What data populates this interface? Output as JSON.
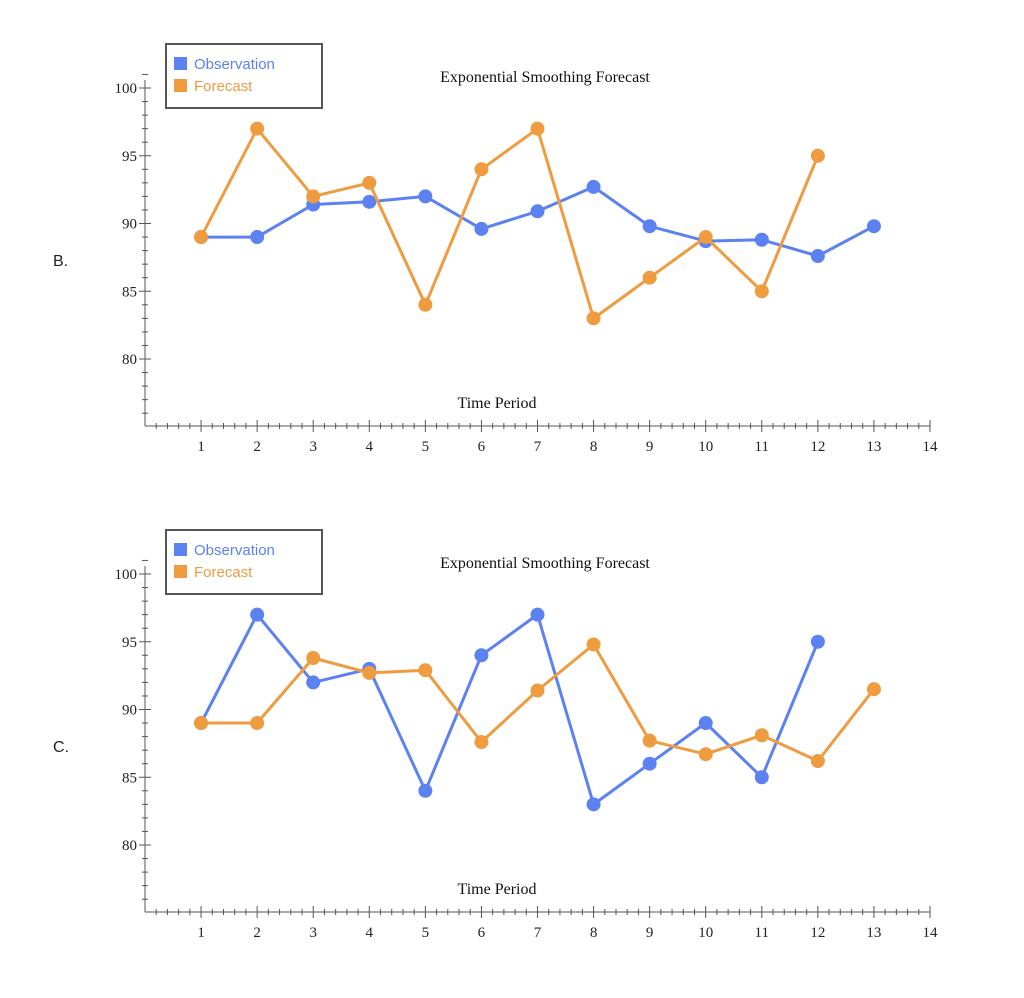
{
  "options": [
    {
      "label": "B."
    },
    {
      "label": "C."
    }
  ],
  "chart_data": [
    {
      "type": "line",
      "title": "Exponential Smoothing Forecast",
      "xlabel": "Time Period",
      "ylabel": "",
      "xlim": [
        0,
        14
      ],
      "ylim": [
        75,
        100
      ],
      "x_ticks": [
        1,
        2,
        3,
        4,
        5,
        6,
        7,
        8,
        9,
        10,
        11,
        12,
        13,
        14
      ],
      "y_ticks": [
        80,
        85,
        90,
        95,
        100
      ],
      "legend_position": "top-left",
      "grid": false,
      "series": [
        {
          "name": "Observation",
          "color": "#5b82f0",
          "x": [
            1,
            2,
            3,
            4,
            5,
            6,
            7,
            8,
            9,
            10,
            11,
            12,
            13
          ],
          "y": [
            89,
            89,
            91.4,
            91.6,
            92,
            89.6,
            90.9,
            92.7,
            89.8,
            88.7,
            88.8,
            87.6,
            89.8
          ]
        },
        {
          "name": "Forecast",
          "color": "#ef9b3f",
          "x": [
            1,
            2,
            3,
            4,
            5,
            6,
            7,
            8,
            9,
            10,
            11,
            12
          ],
          "y": [
            89,
            97,
            92,
            93,
            84,
            94,
            97,
            83,
            86,
            89,
            85,
            95
          ]
        }
      ]
    },
    {
      "type": "line",
      "title": "Exponential Smoothing Forecast",
      "xlabel": "Time Period",
      "ylabel": "",
      "xlim": [
        0,
        14
      ],
      "ylim": [
        75,
        100
      ],
      "x_ticks": [
        1,
        2,
        3,
        4,
        5,
        6,
        7,
        8,
        9,
        10,
        11,
        12,
        13,
        14
      ],
      "y_ticks": [
        80,
        85,
        90,
        95,
        100
      ],
      "legend_position": "top-left",
      "grid": false,
      "series": [
        {
          "name": "Observation",
          "color": "#5b82f0",
          "x": [
            1,
            2,
            3,
            4,
            5,
            6,
            7,
            8,
            9,
            10,
            11,
            12
          ],
          "y": [
            89,
            97,
            92,
            93,
            84,
            94,
            97,
            83,
            86,
            89,
            85,
            95
          ]
        },
        {
          "name": "Forecast",
          "color": "#ef9b3f",
          "x": [
            1,
            2,
            3,
            4,
            5,
            6,
            7,
            8,
            9,
            10,
            11,
            12,
            13
          ],
          "y": [
            89,
            89,
            93.8,
            92.7,
            92.9,
            87.6,
            91.4,
            94.8,
            87.7,
            86.7,
            88.1,
            86.2,
            91.5
          ]
        }
      ]
    }
  ]
}
